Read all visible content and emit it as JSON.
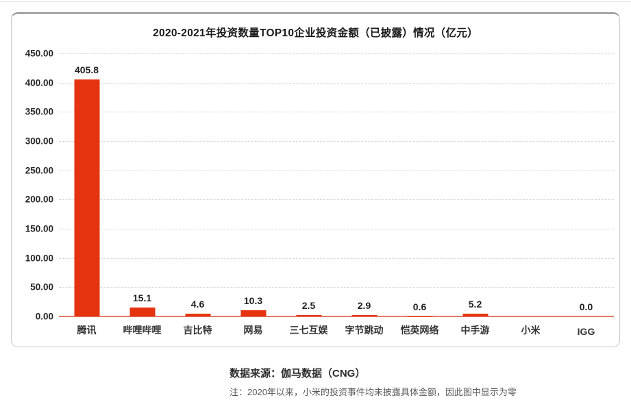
{
  "footer": {
    "source": "数据来源：伽马数据（CNG）",
    "note": "注：2020年以来，小米的投资事件均未披露具体金额，因此图中显示为零"
  },
  "chart_data": {
    "type": "bar",
    "title": "2020-2021年投资数量TOP10企业投资金额（已披露）情况（亿元）",
    "categories": [
      "腾讯",
      "哔哩哔哩",
      "吉比特",
      "网易",
      "三七互娱",
      "字节跳动",
      "恺英网络",
      "中手游",
      "小米",
      "IGG"
    ],
    "values": [
      405.8,
      15.1,
      4.6,
      10.3,
      2.5,
      2.9,
      0.6,
      5.2,
      0,
      0
    ],
    "value_labels": [
      "405.8",
      "15.1",
      "4.6",
      "10.3",
      "2.5",
      "2.9",
      "0.6",
      "5.2",
      "",
      "0.0"
    ],
    "xlabel": "",
    "ylabel": "",
    "ylim": [
      0,
      450
    ],
    "ytick_step": 50,
    "ytick_labels": [
      "450.00",
      "400.00",
      "350.00",
      "300.00",
      "250.00",
      "200.00",
      "150.00",
      "100.00",
      "50.00",
      "0.00"
    ],
    "grid": "horizontal-dashed",
    "legend_position": "none",
    "colors": {
      "bar": "#e5330f",
      "axis_line": "#e07a68",
      "gridline": "#d6d6d6"
    }
  }
}
